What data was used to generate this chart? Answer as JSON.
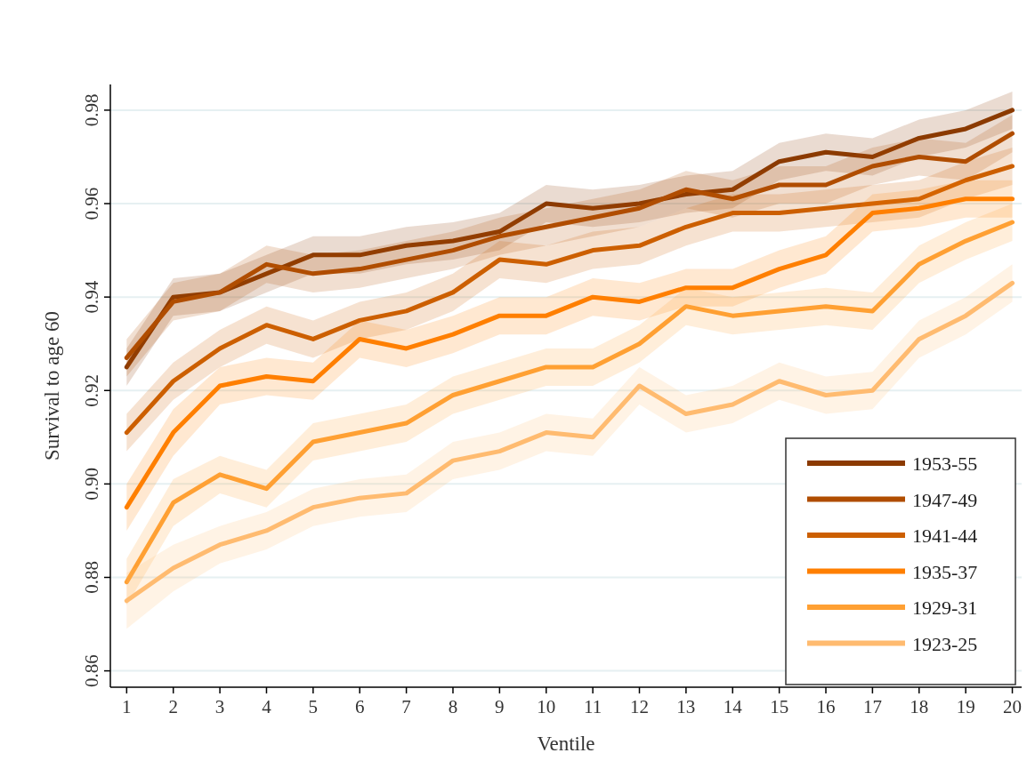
{
  "chart_data": {
    "type": "line",
    "xlabel": "Ventile",
    "ylabel": "Survival to age 60",
    "x": [
      1,
      2,
      3,
      4,
      5,
      6,
      7,
      8,
      9,
      10,
      11,
      12,
      13,
      14,
      15,
      16,
      17,
      18,
      19,
      20
    ],
    "xlim": [
      0.65,
      20.2
    ],
    "xticks": [
      1,
      2,
      3,
      4,
      5,
      6,
      7,
      8,
      9,
      10,
      11,
      12,
      13,
      14,
      15,
      16,
      17,
      18,
      19,
      20
    ],
    "ylim": [
      0.8565,
      0.9855
    ],
    "yticks": [
      {
        "value": 0.86,
        "label": "0.86"
      },
      {
        "value": 0.88,
        "label": "0.88"
      },
      {
        "value": 0.9,
        "label": "0.90"
      },
      {
        "value": 0.92,
        "label": "0.92"
      },
      {
        "value": 0.94,
        "label": "0.94"
      },
      {
        "value": 0.96,
        "label": "0.96"
      },
      {
        "value": 0.98,
        "label": "0.98"
      }
    ],
    "grid": "y",
    "legend": "bottom right",
    "marker": "none",
    "line_style": "solid",
    "series": [
      {
        "name": "1953-55",
        "color": "#8b3a00",
        "values": [
          0.925,
          0.94,
          0.941,
          0.945,
          0.949,
          0.949,
          0.951,
          0.952,
          0.954,
          0.96,
          0.959,
          0.96,
          0.962,
          0.963,
          0.969,
          0.971,
          0.97,
          0.974,
          0.976,
          0.98
        ],
        "lower": [
          0.921,
          0.936,
          0.937,
          0.941,
          0.945,
          0.945,
          0.947,
          0.948,
          0.95,
          0.956,
          0.955,
          0.956,
          0.958,
          0.959,
          0.965,
          0.967,
          0.966,
          0.97,
          0.972,
          0.976
        ],
        "upper": [
          0.929,
          0.944,
          0.945,
          0.949,
          0.953,
          0.953,
          0.955,
          0.956,
          0.958,
          0.964,
          0.963,
          0.964,
          0.966,
          0.967,
          0.973,
          0.975,
          0.974,
          0.978,
          0.98,
          0.984
        ]
      },
      {
        "name": "1947-49",
        "color": "#b04d00",
        "values": [
          0.927,
          0.939,
          0.941,
          0.947,
          0.945,
          0.946,
          0.948,
          0.95,
          0.953,
          0.955,
          0.957,
          0.959,
          0.963,
          0.961,
          0.964,
          0.964,
          0.968,
          0.97,
          0.969,
          0.975
        ],
        "lower": [
          0.923,
          0.935,
          0.937,
          0.943,
          0.941,
          0.942,
          0.944,
          0.946,
          0.949,
          0.951,
          0.953,
          0.955,
          0.959,
          0.957,
          0.96,
          0.96,
          0.964,
          0.966,
          0.965,
          0.971
        ],
        "upper": [
          0.931,
          0.943,
          0.945,
          0.951,
          0.949,
          0.95,
          0.952,
          0.954,
          0.957,
          0.959,
          0.961,
          0.963,
          0.967,
          0.965,
          0.968,
          0.968,
          0.972,
          0.974,
          0.973,
          0.979
        ]
      },
      {
        "name": "1941-44",
        "color": "#cc5f00",
        "values": [
          0.911,
          0.922,
          0.929,
          0.934,
          0.931,
          0.935,
          0.937,
          0.941,
          0.948,
          0.947,
          0.95,
          0.951,
          0.955,
          0.958,
          0.958,
          0.959,
          0.96,
          0.961,
          0.965,
          0.968
        ],
        "lower": [
          0.907,
          0.918,
          0.925,
          0.93,
          0.927,
          0.931,
          0.933,
          0.937,
          0.944,
          0.943,
          0.946,
          0.947,
          0.951,
          0.954,
          0.954,
          0.955,
          0.956,
          0.957,
          0.961,
          0.964
        ],
        "upper": [
          0.915,
          0.926,
          0.933,
          0.938,
          0.935,
          0.939,
          0.941,
          0.945,
          0.952,
          0.951,
          0.954,
          0.955,
          0.959,
          0.962,
          0.962,
          0.963,
          0.964,
          0.965,
          0.969,
          0.972
        ]
      },
      {
        "name": "1935-37",
        "color": "#ff7f00",
        "values": [
          0.895,
          0.911,
          0.921,
          0.923,
          0.922,
          0.931,
          0.929,
          0.932,
          0.936,
          0.936,
          0.94,
          0.939,
          0.942,
          0.942,
          0.946,
          0.949,
          0.958,
          0.959,
          0.961,
          0.961
        ],
        "lower": [
          0.89,
          0.906,
          0.917,
          0.919,
          0.918,
          0.927,
          0.925,
          0.928,
          0.932,
          0.932,
          0.936,
          0.935,
          0.938,
          0.938,
          0.942,
          0.945,
          0.954,
          0.955,
          0.957,
          0.957
        ],
        "upper": [
          0.9,
          0.916,
          0.925,
          0.927,
          0.926,
          0.935,
          0.933,
          0.936,
          0.94,
          0.94,
          0.944,
          0.943,
          0.946,
          0.946,
          0.95,
          0.953,
          0.962,
          0.963,
          0.965,
          0.965
        ]
      },
      {
        "name": "1929-31",
        "color": "#ffa033",
        "values": [
          0.879,
          0.896,
          0.902,
          0.899,
          0.909,
          0.911,
          0.913,
          0.919,
          0.922,
          0.925,
          0.925,
          0.93,
          0.938,
          0.936,
          0.937,
          0.938,
          0.937,
          0.947,
          0.952,
          0.956
        ],
        "lower": [
          0.874,
          0.891,
          0.898,
          0.895,
          0.905,
          0.907,
          0.909,
          0.915,
          0.918,
          0.921,
          0.921,
          0.926,
          0.934,
          0.932,
          0.933,
          0.934,
          0.933,
          0.943,
          0.948,
          0.952
        ],
        "upper": [
          0.884,
          0.901,
          0.906,
          0.903,
          0.913,
          0.915,
          0.917,
          0.923,
          0.926,
          0.929,
          0.929,
          0.934,
          0.942,
          0.94,
          0.941,
          0.942,
          0.941,
          0.951,
          0.956,
          0.96
        ]
      },
      {
        "name": "1923-25",
        "color": "#ffbb70",
        "values": [
          0.875,
          0.882,
          0.887,
          0.89,
          0.895,
          0.897,
          0.898,
          0.905,
          0.907,
          0.911,
          0.91,
          0.921,
          0.915,
          0.917,
          0.922,
          0.919,
          0.92,
          0.931,
          0.936,
          0.943
        ],
        "lower": [
          0.869,
          0.877,
          0.883,
          0.886,
          0.891,
          0.893,
          0.894,
          0.901,
          0.903,
          0.907,
          0.906,
          0.917,
          0.911,
          0.913,
          0.918,
          0.915,
          0.916,
          0.927,
          0.932,
          0.939
        ],
        "upper": [
          0.881,
          0.887,
          0.891,
          0.894,
          0.899,
          0.901,
          0.902,
          0.909,
          0.911,
          0.915,
          0.914,
          0.925,
          0.919,
          0.921,
          0.926,
          0.923,
          0.924,
          0.935,
          0.94,
          0.947
        ]
      }
    ]
  }
}
